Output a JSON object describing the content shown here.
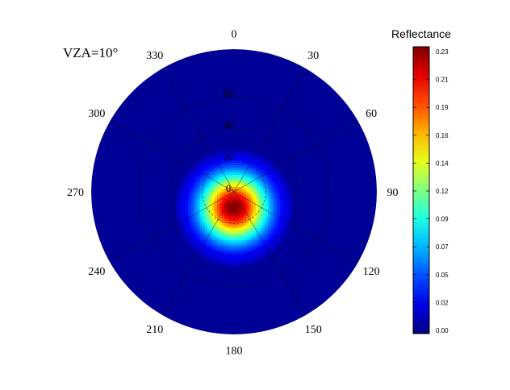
{
  "chart_data": {
    "type": "heatmap",
    "subtype": "polar",
    "title": "VZA=10°",
    "colorbar": {
      "label": "Reflectance",
      "ticks": [
        "0.23",
        "0.21",
        "0.19",
        "0.16",
        "0.14",
        "0.12",
        "0.09",
        "0.07",
        "0.05",
        "0.02",
        "0.00"
      ],
      "range": [
        0.0,
        0.23
      ],
      "colormap": "jet"
    },
    "angular_ticks": [
      "0",
      "30",
      "60",
      "90",
      "120",
      "150",
      "180",
      "210",
      "240",
      "270",
      "300",
      "330"
    ],
    "angular_tick_values": [
      0,
      30,
      60,
      90,
      120,
      150,
      180,
      210,
      240,
      270,
      300,
      330
    ],
    "radial_ticks": [
      "0",
      "20",
      "40",
      "60"
    ],
    "radial_tick_values": [
      0,
      20,
      40,
      60
    ],
    "radial_range": [
      0,
      90
    ],
    "hotspot": {
      "azimuth": 180,
      "zenith": 10,
      "peak_reflectance": 0.23
    },
    "background_reflectance": 0.005,
    "grid": true
  }
}
